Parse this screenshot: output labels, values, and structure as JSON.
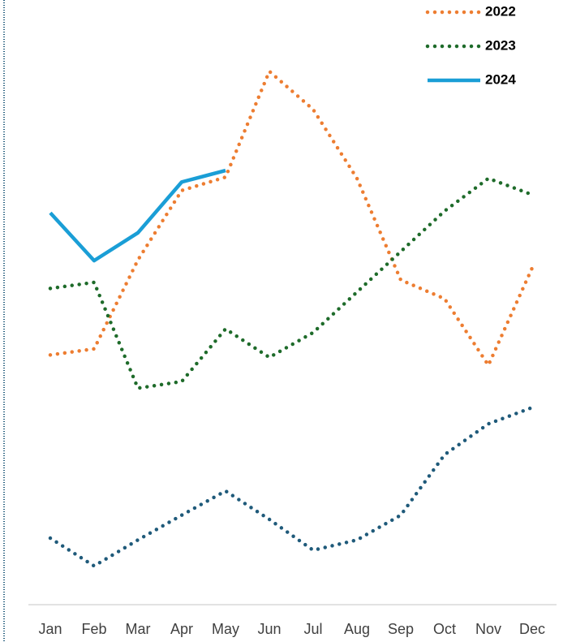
{
  "chart_data": {
    "type": "line",
    "categories": [
      "Jan",
      "Feb",
      "Mar",
      "Apr",
      "May",
      "Jun",
      "Jul",
      "Aug",
      "Sep",
      "Oct",
      "Nov",
      "Dec"
    ],
    "series": [
      {
        "name": "2022",
        "color": "#ed7d31",
        "style": "dotted",
        "values": [
          41.3,
          42.3,
          57.0,
          68.5,
          70.7,
          88.2,
          81.9,
          70.5,
          53.7,
          50.6,
          39.6,
          55.7
        ]
      },
      {
        "name": "2023",
        "color": "#1e6b2a",
        "style": "dotted",
        "values": [
          52.3,
          53.3,
          35.8,
          36.9,
          45.6,
          40.9,
          45.0,
          51.7,
          58.4,
          65.1,
          70.5,
          67.8
        ]
      },
      {
        "name": "2024",
        "color": "#1a9ed6",
        "style": "solid",
        "values": [
          64.8,
          56.9,
          61.5,
          69.9,
          71.8,
          null,
          null,
          null,
          null,
          null,
          null,
          null
        ]
      },
      {
        "color": "#1f5a7a",
        "style": "dotted",
        "values": [
          11.0,
          6.4,
          10.7,
          14.8,
          18.8,
          14.1,
          9.0,
          10.7,
          14.8,
          24.8,
          29.9,
          32.6
        ]
      }
    ],
    "ylim": [
      0,
      100
    ],
    "legend": "top-right"
  }
}
